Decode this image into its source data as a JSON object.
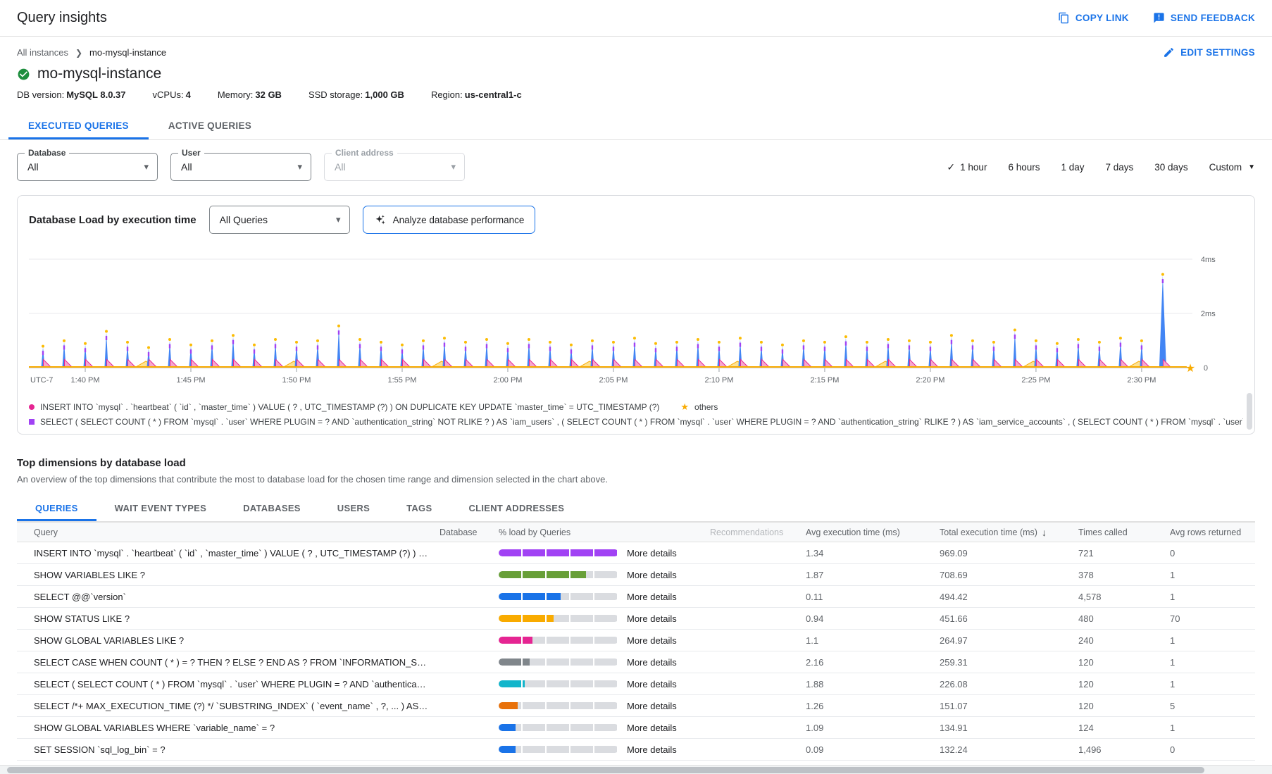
{
  "app": {
    "title": "Query insights",
    "copy_link": "COPY LINK",
    "send_feedback": "SEND FEEDBACK"
  },
  "breadcrumb": {
    "parent": "All instances",
    "current": "mo-mysql-instance",
    "edit_settings": "EDIT SETTINGS"
  },
  "instance": {
    "name": "mo-mysql-instance",
    "status": "healthy",
    "meta": [
      {
        "label": "DB version:",
        "value": "MySQL 8.0.37"
      },
      {
        "label": "vCPUs:",
        "value": "4"
      },
      {
        "label": "Memory:",
        "value": "32 GB"
      },
      {
        "label": "SSD storage:",
        "value": "1,000 GB"
      },
      {
        "label": "Region:",
        "value": "us-central1-c"
      }
    ]
  },
  "main_tabs": [
    {
      "label": "EXECUTED QUERIES",
      "active": true
    },
    {
      "label": "ACTIVE QUERIES",
      "active": false
    }
  ],
  "filters": [
    {
      "label": "Database",
      "value": "All",
      "disabled": false
    },
    {
      "label": "User",
      "value": "All",
      "disabled": false
    },
    {
      "label": "Client address",
      "value": "All",
      "disabled": true
    }
  ],
  "time_ranges": {
    "options": [
      {
        "label": "1 hour",
        "selected": true
      },
      {
        "label": "6 hours",
        "selected": false
      },
      {
        "label": "1 day",
        "selected": false
      },
      {
        "label": "7 days",
        "selected": false
      },
      {
        "label": "30 days",
        "selected": false
      },
      {
        "label": "Custom",
        "selected": false,
        "caret": true
      }
    ]
  },
  "chart_section": {
    "title": "Database Load by execution time",
    "query_scope": "All Queries",
    "analyze_label": "Analyze database performance"
  },
  "chart_data": {
    "type": "area",
    "title": "Database Load by execution time",
    "unit": "ms",
    "ylim": [
      0,
      4
    ],
    "y_ticks": [
      "4ms",
      "2ms",
      "0"
    ],
    "x_axis_note": "UTC-7",
    "x_ticks": [
      "1:40 PM",
      "1:45 PM",
      "1:50 PM",
      "1:55 PM",
      "2:00 PM",
      "2:05 PM",
      "2:10 PM",
      "2:15 PM",
      "2:20 PM",
      "2:25 PM",
      "2:30 PM"
    ],
    "first_tick_index": 2,
    "tick_step": 5,
    "spikes_ms": [
      0.75,
      0.95,
      0.85,
      1.3,
      0.9,
      0.7,
      1.0,
      0.8,
      0.95,
      1.15,
      0.8,
      1.0,
      0.9,
      0.95,
      1.5,
      1.0,
      0.9,
      0.8,
      0.95,
      1.05,
      0.9,
      1.0,
      0.85,
      1.0,
      0.9,
      0.8,
      0.95,
      0.9,
      1.05,
      0.85,
      0.9,
      1.0,
      0.9,
      1.05,
      0.9,
      0.8,
      0.95,
      0.9,
      1.1,
      0.9,
      1.0,
      0.95,
      0.9,
      1.15,
      0.95,
      0.9,
      1.35,
      0.95,
      0.85,
      1.0,
      0.9,
      1.05,
      0.95,
      3.4,
      0
    ],
    "insert_spike_ms": 0.3,
    "bump_indices": [
      4,
      11,
      18,
      25,
      32,
      39,
      46,
      51
    ],
    "series": [
      {
        "name": "load by execution time",
        "color": "#4285f4"
      },
      {
        "name": "INSERT INTO heartbeat",
        "color": "#e52592"
      },
      {
        "name": "SELECT iam_users",
        "color": "#a142f4"
      },
      {
        "name": "others",
        "color": "#f9ab00"
      }
    ]
  },
  "legend": {
    "rows": [
      [
        {
          "marker": "dot",
          "color": "#e52592",
          "text": "INSERT INTO `mysql` . `heartbeat` ( `id` , `master_time` ) VALUE ( ? , UTC_TIMESTAMP (?) ) ON DUPLICATE KEY UPDATE `master_time` = UTC_TIMESTAMP (?)"
        },
        {
          "marker": "star",
          "color": "#f9ab00",
          "text": "others"
        }
      ],
      [
        {
          "marker": "square",
          "color": "#a142f4",
          "text": "SELECT ( SELECT COUNT ( * ) FROM `mysql` . `user` WHERE PLUGIN = ? AND `authentication_string` NOT RLIKE ? ) AS `iam_users` , ( SELECT COUNT ( * ) FROM `mysql` . `user` WHERE PLUGIN = ? AND `authentication_string` RLIKE ? ) AS `iam_service_accounts` , ( SELECT COUNT ( * ) FROM `mysql` . `user` WHERE PLUGI..."
        }
      ]
    ]
  },
  "top_dimensions": {
    "title": "Top dimensions by database load",
    "description": "An overview of the top dimensions that contribute the most to database load for the chosen time range and dimension selected in the chart above.",
    "tabs": [
      {
        "label": "QUERIES",
        "active": true
      },
      {
        "label": "WAIT EVENT TYPES",
        "active": false
      },
      {
        "label": "DATABASES",
        "active": false
      },
      {
        "label": "USERS",
        "active": false
      },
      {
        "label": "TAGS",
        "active": false
      },
      {
        "label": "CLIENT ADDRESSES",
        "active": false
      }
    ],
    "table": {
      "headers": [
        {
          "label": "Query"
        },
        {
          "label": "Database"
        },
        {
          "label": "% load by Queries"
        },
        {
          "label": "Recommendations",
          "muted": true
        },
        {
          "label": "Avg execution time (ms)"
        },
        {
          "label": "Total execution time (ms)",
          "sorted": "desc"
        },
        {
          "label": "Times called"
        },
        {
          "label": "Avg rows returned"
        }
      ],
      "more_details_label": "More details",
      "rows": [
        {
          "query": "INSERT INTO `mysql` . `heartbeat` ( `id` , `master_time` ) VALUE ( ? , UTC_TIMESTAMP (?) ) O...",
          "load_pct": 100,
          "load_color": "#a142f4",
          "avg_ms": "1.34",
          "total_ms": "969.09",
          "times_called": "721",
          "avg_rows": "0"
        },
        {
          "query": "SHOW VARIABLES LIKE ?",
          "load_pct": 73,
          "load_color": "#689f38",
          "avg_ms": "1.87",
          "total_ms": "708.69",
          "times_called": "378",
          "avg_rows": "1"
        },
        {
          "query": "SELECT @@`version`",
          "load_pct": 52,
          "load_color": "#1a73e8",
          "avg_ms": "0.11",
          "total_ms": "494.42",
          "times_called": "4,578",
          "avg_rows": "1"
        },
        {
          "query": "SHOW STATUS LIKE ?",
          "load_pct": 46,
          "load_color": "#f9ab00",
          "avg_ms": "0.94",
          "total_ms": "451.66",
          "times_called": "480",
          "avg_rows": "70"
        },
        {
          "query": "SHOW GLOBAL VARIABLES LIKE ?",
          "load_pct": 28,
          "load_color": "#e52592",
          "avg_ms": "1.1",
          "total_ms": "264.97",
          "times_called": "240",
          "avg_rows": "1"
        },
        {
          "query": "SELECT CASE WHEN COUNT ( * ) = ? THEN ? ELSE ? END AS ? FROM `INFORMATION_SCHEM...",
          "load_pct": 26,
          "load_color": "#80868b",
          "avg_ms": "2.16",
          "total_ms": "259.31",
          "times_called": "120",
          "avg_rows": "1"
        },
        {
          "query": "SELECT ( SELECT COUNT ( * ) FROM `mysql` . `user` WHERE PLUGIN = ? AND `authentication...",
          "load_pct": 22,
          "load_color": "#12b5cb",
          "avg_ms": "1.88",
          "total_ms": "226.08",
          "times_called": "120",
          "avg_rows": "1"
        },
        {
          "query": "SELECT /*+ MAX_EXECUTION_TIME (?) */ `SUBSTRING_INDEX` ( `event_name` , ?, ... ) AS `co...",
          "load_pct": 16,
          "load_color": "#e8710a",
          "avg_ms": "1.26",
          "total_ms": "151.07",
          "times_called": "120",
          "avg_rows": "5"
        },
        {
          "query": "SHOW GLOBAL VARIABLES WHERE `variable_name` = ?",
          "load_pct": 14,
          "load_color": "#1a73e8",
          "avg_ms": "1.09",
          "total_ms": "134.91",
          "times_called": "124",
          "avg_rows": "1"
        },
        {
          "query": "SET SESSION `sql_log_bin` = ?",
          "load_pct": 14,
          "load_color": "#1a73e8",
          "avg_ms": "0.09",
          "total_ms": "132.24",
          "times_called": "1,496",
          "avg_rows": "0"
        }
      ]
    }
  }
}
